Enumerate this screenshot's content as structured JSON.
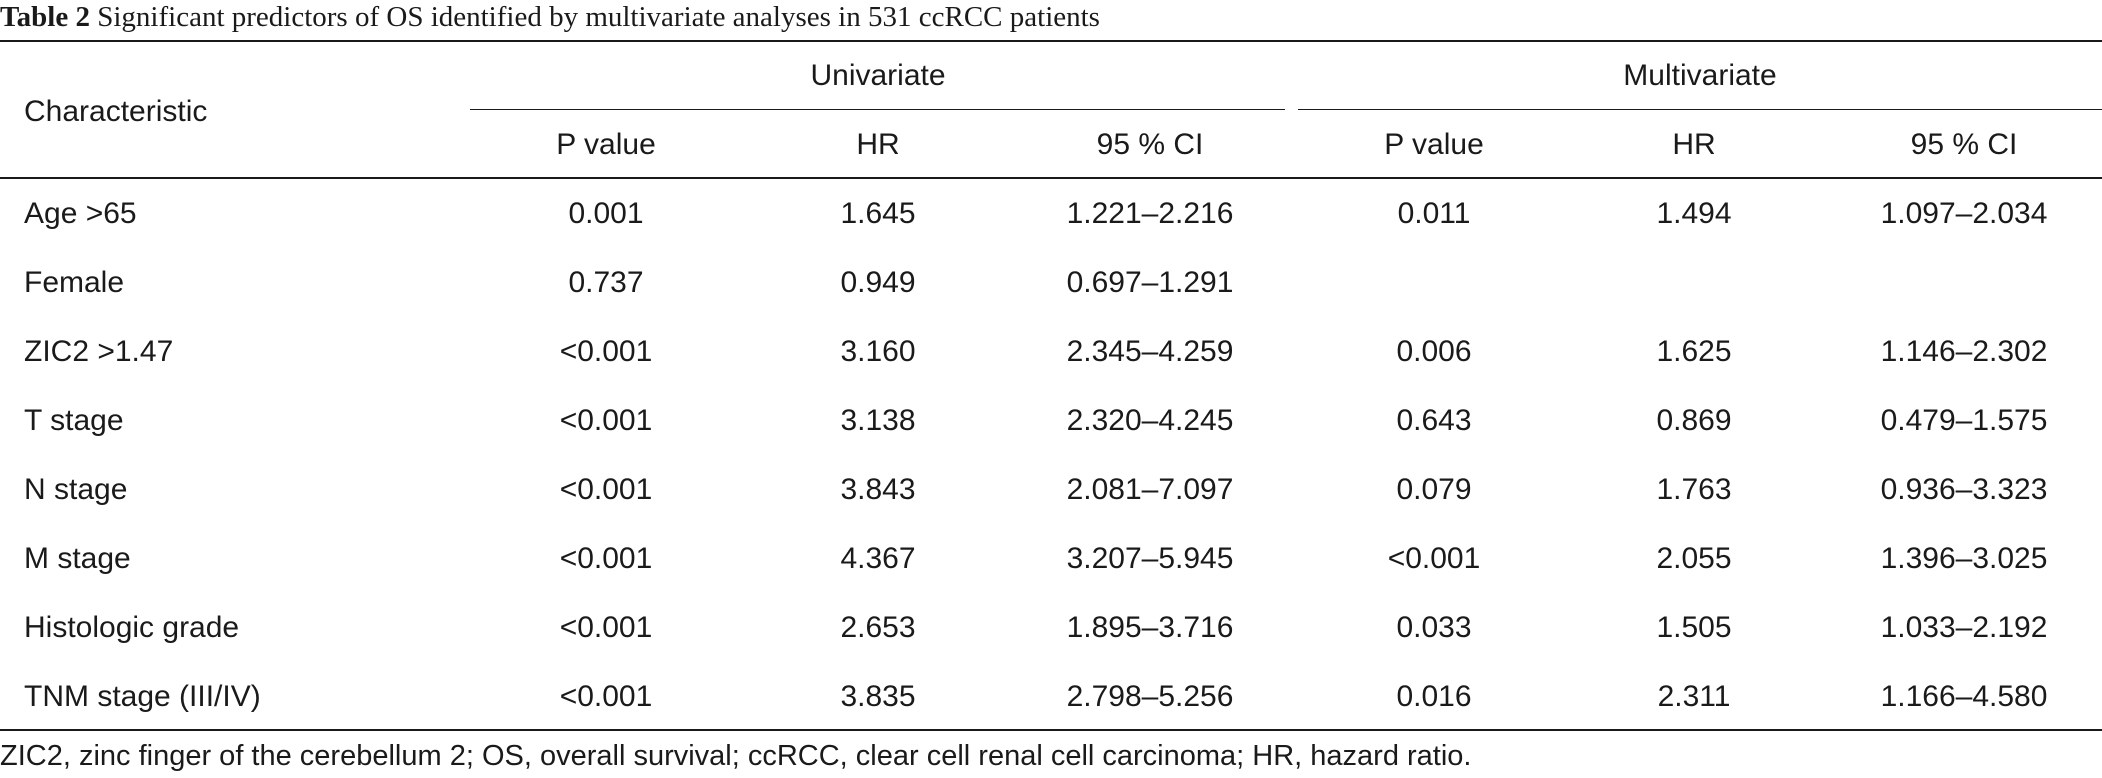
{
  "table": {
    "caption_label": "Table 2",
    "caption_text": " Significant predictors of OS identified by multivariate analyses in 531 ccRCC patients",
    "header": {
      "characteristic": "Characteristic",
      "group_univariate": "Univariate",
      "group_multivariate": "Multivariate",
      "sub": [
        "P value",
        "HR",
        "95 % CI",
        "P value",
        "HR",
        "95 % CI"
      ]
    },
    "rows": [
      {
        "name": "Age >65",
        "cells": [
          "0.001",
          "1.645",
          "1.221–2.216",
          "0.011",
          "1.494",
          "1.097–2.034"
        ]
      },
      {
        "name": "Female",
        "cells": [
          "0.737",
          "0.949",
          "0.697–1.291",
          "",
          "",
          ""
        ]
      },
      {
        "name": "ZIC2 >1.47",
        "cells": [
          "<0.001",
          "3.160",
          "2.345–4.259",
          "0.006",
          "1.625",
          "1.146–2.302"
        ]
      },
      {
        "name": "T stage",
        "cells": [
          "<0.001",
          "3.138",
          "2.320–4.245",
          "0.643",
          "0.869",
          "0.479–1.575"
        ]
      },
      {
        "name": "N stage",
        "cells": [
          "<0.001",
          "3.843",
          "2.081–7.097",
          "0.079",
          "1.763",
          "0.936–3.323"
        ]
      },
      {
        "name": "M stage",
        "cells": [
          "<0.001",
          "4.367",
          "3.207–5.945",
          "<0.001",
          "2.055",
          "1.396–3.025"
        ]
      },
      {
        "name": "Histologic grade",
        "cells": [
          "<0.001",
          "2.653",
          "1.895–3.716",
          "0.033",
          "1.505",
          "1.033–2.192"
        ]
      },
      {
        "name": "TNM stage (III/IV)",
        "cells": [
          "<0.001",
          "3.835",
          "2.798–5.256",
          "0.016",
          "2.311",
          "1.166–4.580"
        ]
      }
    ],
    "footnote": "ZIC2, zinc finger of the cerebellum 2; OS, overall survival; ccRCC, clear cell renal cell carcinoma; HR, hazard ratio."
  }
}
